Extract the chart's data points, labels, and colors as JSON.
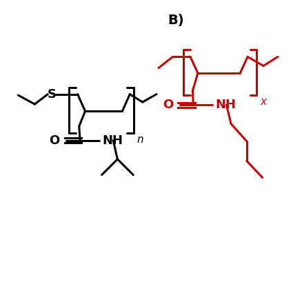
{
  "bg_color": "#ffffff",
  "black_color": "#000000",
  "red_color": "#cc0000",
  "label_B": "B)",
  "label_n": "n",
  "label_x": "x",
  "lw": 2.2
}
